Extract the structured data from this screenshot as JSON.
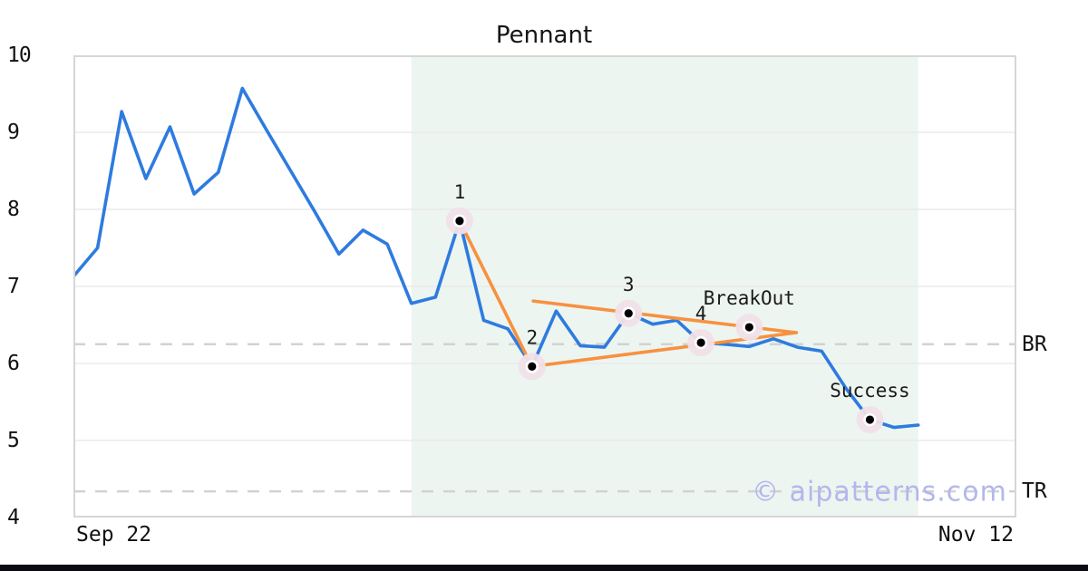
{
  "chart_data": {
    "type": "line",
    "title": "Pennant",
    "ylim": [
      4,
      10
    ],
    "y_ticks": [
      10,
      9,
      8,
      7,
      6,
      5,
      4
    ],
    "x_tick_labels": [
      "Sep 22",
      "Nov 12"
    ],
    "x_range_days": 35,
    "grid": true,
    "legend": false,
    "series": [
      {
        "name": "price",
        "color": "#2e7bdf",
        "values": [
          7.13,
          7.5,
          9.27,
          8.4,
          9.07,
          8.2,
          8.48,
          9.57,
          9.03,
          8.5,
          7.97,
          7.42,
          7.73,
          7.55,
          6.78,
          6.86,
          7.85,
          6.56,
          6.45,
          5.96,
          6.68,
          6.23,
          6.21,
          6.65,
          6.51,
          6.56,
          6.27,
          6.25,
          6.22,
          6.32,
          6.21,
          6.16,
          5.68,
          5.27,
          5.17,
          5.2
        ]
      }
    ],
    "trendlines": [
      {
        "name": "flagpole-drop",
        "from": [
          16,
          7.85
        ],
        "to": [
          19,
          5.96
        ]
      },
      {
        "name": "pennant-upper",
        "from": [
          19.05,
          6.81
        ],
        "to": [
          29.95,
          6.4
        ]
      },
      {
        "name": "pennant-lower",
        "from": [
          19,
          5.96
        ],
        "to": [
          29.95,
          6.4
        ]
      }
    ],
    "markers": [
      {
        "label": "1",
        "day": 16,
        "value": 7.85
      },
      {
        "label": "2",
        "day": 19,
        "value": 5.96
      },
      {
        "label": "3",
        "day": 23,
        "value": 6.65
      },
      {
        "label": "4",
        "day": 26,
        "value": 6.27
      },
      {
        "label": "BreakOut",
        "day": 28,
        "value": 6.47
      },
      {
        "label": "Success",
        "day": 33,
        "value": 5.27
      }
    ],
    "hlines": [
      {
        "label": "BR",
        "value": 6.25
      },
      {
        "label": "TR",
        "value": 4.34
      }
    ],
    "shaded_region": {
      "start_day": 14,
      "end_day": 35,
      "color": "#edf5f1"
    },
    "watermark": "© aipatterns.com",
    "colors": {
      "line": "#2e7bdf",
      "trend": "#f79140",
      "grid": "#e8e8e8",
      "spine": "#d6d6d6",
      "dashed": "#d2d2d2",
      "marker_halo": "#f1e0e8",
      "marker_dot": "#000000",
      "label_text": "#1a1a1a",
      "watermark": "#b3b7ec",
      "bottom_bar": "#0a0b12"
    }
  }
}
